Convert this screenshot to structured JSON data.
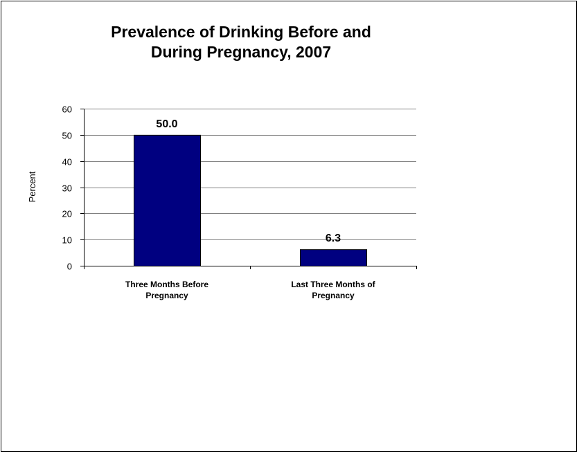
{
  "chart_data": {
    "type": "bar",
    "title_lines": [
      "Prevalence of Drinking Before and",
      "During Pregnancy, 2007"
    ],
    "ylabel": "Percent",
    "xlabel": "",
    "ylim": [
      0,
      60
    ],
    "yticks": [
      0,
      10,
      20,
      30,
      40,
      50,
      60
    ],
    "grid": true,
    "categories": [
      [
        "Three Months Before",
        "Pregnancy"
      ],
      [
        "Last Three Months of",
        "Pregnancy"
      ]
    ],
    "values": [
      50.0,
      6.3
    ],
    "data_labels": [
      "50.0",
      "6.3"
    ],
    "bar_color": "#000080"
  }
}
